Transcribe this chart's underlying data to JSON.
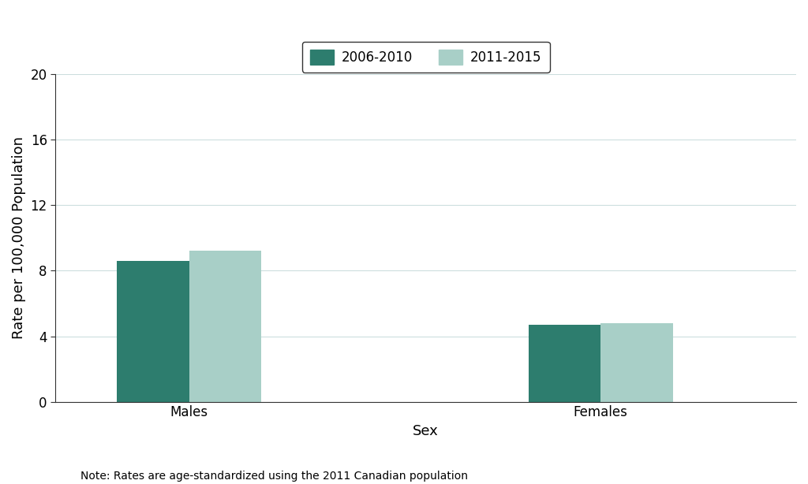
{
  "categories": [
    "Males",
    "Females"
  ],
  "series": {
    "2006-2010": [
      8.6,
      4.7
    ],
    "2011-2015": [
      9.2,
      4.8
    ]
  },
  "colors": {
    "2006-2010": "#2d7d6e",
    "2011-2015": "#a8cfc7"
  },
  "ylabel": "Rate per 100,000 Population",
  "xlabel": "Sex",
  "ylim": [
    0,
    20
  ],
  "yticks": [
    0,
    4,
    8,
    12,
    16,
    20
  ],
  "note": "Note: Rates are age-standardized using the 2011 Canadian population",
  "bar_width": 0.35,
  "background_color": "#ffffff",
  "grid_color": "#ccdede",
  "legend_labels": [
    "2006-2010",
    "2011-2015"
  ],
  "label_fontsize": 13,
  "tick_fontsize": 12,
  "legend_fontsize": 12,
  "note_fontsize": 10
}
